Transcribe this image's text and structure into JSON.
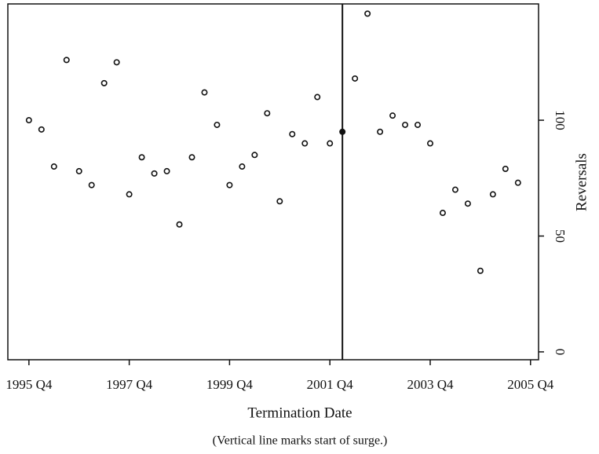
{
  "chart_data": {
    "type": "scatter",
    "x_label": "Termination Date",
    "y_label": "Reversals",
    "note": "(Vertical line marks start of surge.)",
    "x": [
      1995.75,
      1996.0,
      1996.25,
      1996.5,
      1996.75,
      1997.0,
      1997.25,
      1997.5,
      1997.75,
      1998.0,
      1998.25,
      1998.5,
      1998.75,
      1999.0,
      1999.25,
      1999.5,
      1999.75,
      2000.0,
      2000.25,
      2000.5,
      2000.75,
      2001.0,
      2001.25,
      2001.5,
      2001.75,
      2002.0,
      2002.25,
      2002.5,
      2002.75,
      2003.0,
      2003.25,
      2003.5,
      2003.75,
      2004.0,
      2004.25,
      2004.5,
      2004.75,
      2005.0,
      2005.25,
      2005.5
    ],
    "values": [
      100,
      96,
      80,
      126,
      78,
      72,
      116,
      125,
      68,
      84,
      77,
      78,
      55,
      84,
      112,
      98,
      72,
      80,
      85,
      103,
      65,
      94,
      90,
      110,
      90,
      95,
      118,
      146,
      95,
      102,
      98,
      98,
      90,
      60,
      70,
      64,
      35,
      68,
      79,
      73
    ],
    "vline": 2002.0,
    "xlim": [
      1995.33,
      2005.91
    ],
    "ylim": [
      -3.4,
      150.2
    ],
    "xticks": [
      {
        "value": 1995.75,
        "label": "1995 Q4"
      },
      {
        "value": 1997.75,
        "label": "1997 Q4"
      },
      {
        "value": 1999.75,
        "label": "1999 Q4"
      },
      {
        "value": 2001.75,
        "label": "2001 Q4"
      },
      {
        "value": 2003.75,
        "label": "2003 Q4"
      },
      {
        "value": 2005.75,
        "label": "2005 Q4"
      }
    ],
    "yticks": [
      0,
      50,
      100
    ],
    "color": "#111111"
  }
}
